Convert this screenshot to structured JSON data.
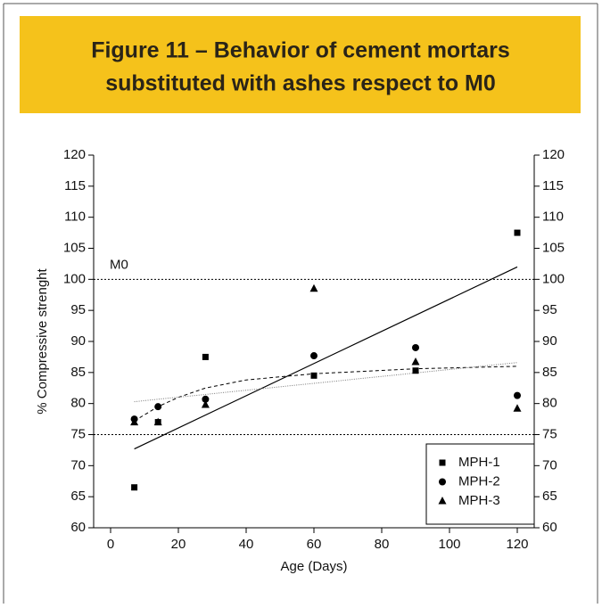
{
  "header": {
    "title_lines": [
      "Figure 11 – Behavior of cement mortars",
      "substituted with ashes respect to M0"
    ]
  },
  "chart_data": {
    "type": "scatter",
    "x_label": "Age (Days)",
    "y_label": "% Compressive strenght",
    "xlim": [
      -5,
      125
    ],
    "xticks": [
      0,
      20,
      40,
      60,
      80,
      100,
      120
    ],
    "ylim": [
      60,
      120
    ],
    "yticks": [
      60,
      65,
      70,
      75,
      80,
      85,
      90,
      95,
      100,
      105,
      110,
      115,
      120
    ],
    "y2lim": [
      60,
      120
    ],
    "y2ticks": [
      60,
      65,
      70,
      75,
      80,
      85,
      90,
      95,
      100,
      105,
      110,
      115,
      120
    ],
    "legend": "lower right",
    "reference_lines": [
      {
        "value": 100,
        "label": "M0"
      },
      {
        "value": 75
      }
    ],
    "series": [
      {
        "name": "MPH-1",
        "color": "#000000",
        "marker": "square",
        "x": [
          7,
          14,
          28,
          60,
          90,
          120
        ],
        "values": [
          66.5,
          77,
          87.5,
          84.5,
          85.3,
          107.5
        ]
      },
      {
        "name": "MPH-2",
        "color": "#000000",
        "marker": "circle",
        "x": [
          7,
          14,
          28,
          60,
          90,
          120
        ],
        "values": [
          77.5,
          79.5,
          80.7,
          87.7,
          89,
          81.3
        ]
      },
      {
        "name": "MPH-3",
        "color": "#000000",
        "marker": "triangle",
        "x": [
          7,
          14,
          28,
          60,
          90,
          120
        ],
        "values": [
          77,
          77,
          79.8,
          98.5,
          86.7,
          79.2
        ]
      }
    ],
    "trendlines": [
      {
        "style": "solid",
        "x": [
          7,
          120
        ],
        "values": [
          72.7,
          102
        ]
      },
      {
        "style": "dashed",
        "x": [
          7,
          14,
          20,
          28,
          40,
          60,
          90,
          120
        ],
        "values": [
          77.2,
          79.5,
          81,
          82.5,
          83.8,
          84.8,
          85.6,
          86
        ]
      },
      {
        "style": "dotted",
        "x": [
          7,
          120
        ],
        "values": [
          80.3,
          86.6
        ]
      }
    ]
  }
}
